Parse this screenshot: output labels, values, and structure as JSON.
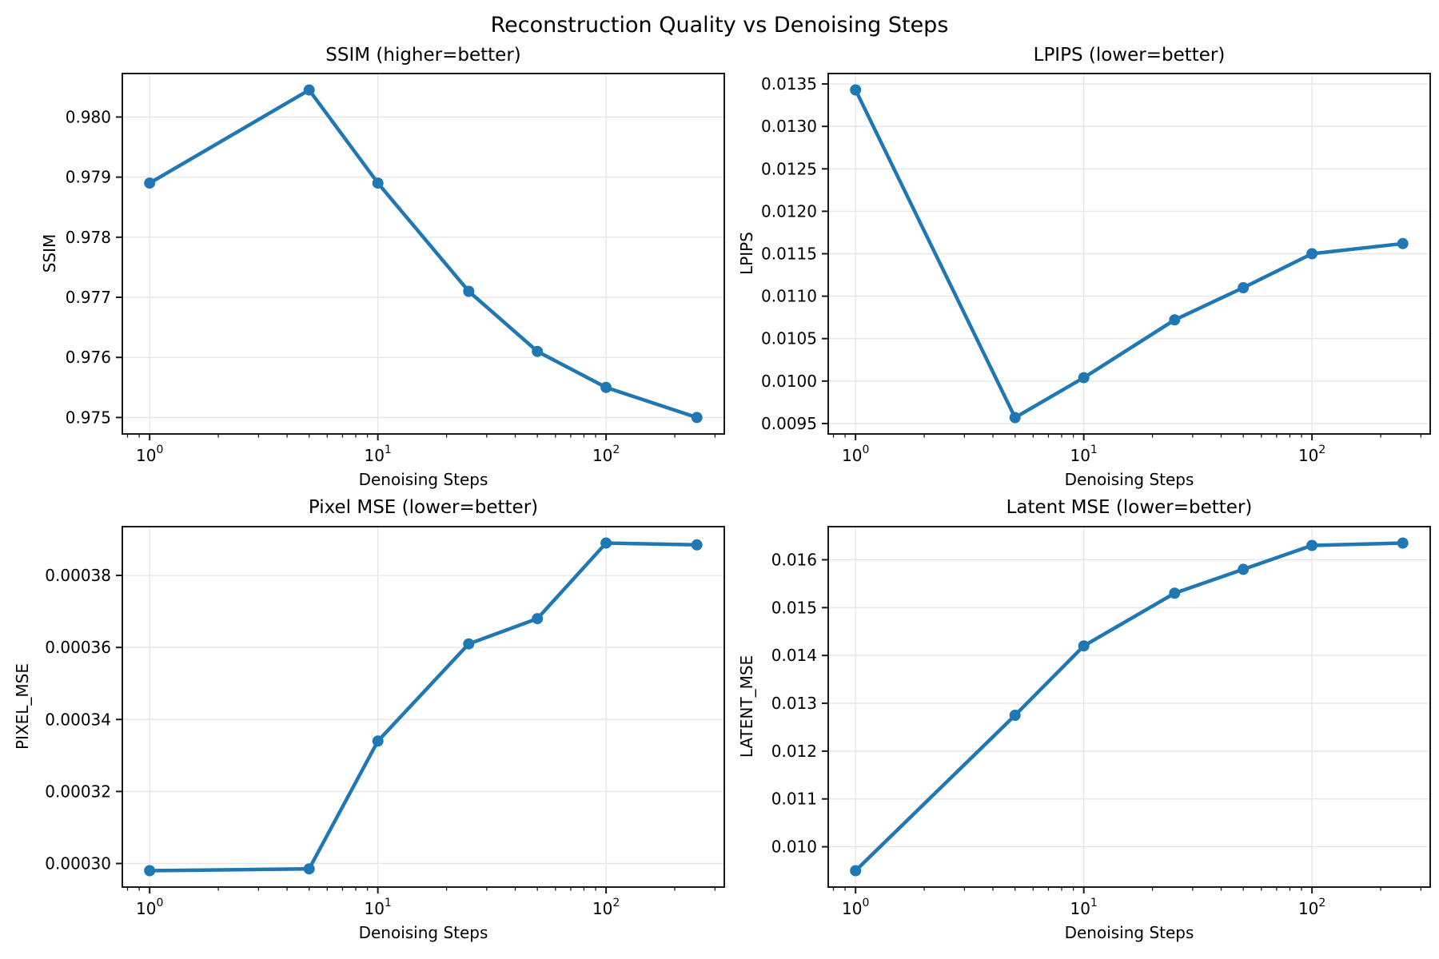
{
  "figure": {
    "title": "Reconstruction Quality vs Denoising Steps",
    "background_color": "#ffffff",
    "accent_color": "#1f77b4"
  },
  "chart_data": [
    {
      "id": "ssim",
      "type": "line",
      "title": "SSIM (higher=better)",
      "xlabel": "Denoising Steps",
      "ylabel": "SSIM",
      "x_scale": "log",
      "grid": true,
      "legend": "none",
      "line_color": "#1f77b4",
      "marker": "circle",
      "x": [
        1,
        5,
        10,
        25,
        50,
        100,
        250
      ],
      "values": [
        0.9789,
        0.98045,
        0.9789,
        0.9771,
        0.9761,
        0.9755,
        0.975
      ],
      "xlim": [
        0.759,
        329.6
      ],
      "ylim": [
        0.974726,
        0.980724
      ],
      "xticks": [
        {
          "value": 1,
          "base": "10",
          "exponent": "0"
        },
        {
          "value": 10,
          "base": "10",
          "exponent": "1"
        },
        {
          "value": 100,
          "base": "10",
          "exponent": "2"
        }
      ],
      "x_minor_ticks": [
        0.8,
        0.9,
        2,
        3,
        4,
        5,
        6,
        7,
        8,
        9,
        20,
        30,
        40,
        50,
        60,
        70,
        80,
        90,
        200,
        300
      ],
      "yticks": [
        {
          "value": 0.975,
          "label": "0.975"
        },
        {
          "value": 0.976,
          "label": "0.976"
        },
        {
          "value": 0.977,
          "label": "0.977"
        },
        {
          "value": 0.978,
          "label": "0.978"
        },
        {
          "value": 0.979,
          "label": "0.979"
        },
        {
          "value": 0.98,
          "label": "0.980"
        }
      ]
    },
    {
      "id": "lpips",
      "type": "line",
      "title": "LPIPS (lower=better)",
      "xlabel": "Denoising Steps",
      "ylabel": "LPIPS",
      "x_scale": "log",
      "grid": true,
      "legend": "none",
      "line_color": "#1f77b4",
      "marker": "circle",
      "x": [
        1,
        5,
        10,
        25,
        50,
        100,
        250
      ],
      "values": [
        0.01343,
        0.00957,
        0.01004,
        0.01072,
        0.0111,
        0.0115,
        0.01162
      ],
      "xlim": [
        0.759,
        329.6
      ],
      "ylim": [
        0.009377,
        0.013623
      ],
      "xticks": [
        {
          "value": 1,
          "base": "10",
          "exponent": "0"
        },
        {
          "value": 10,
          "base": "10",
          "exponent": "1"
        },
        {
          "value": 100,
          "base": "10",
          "exponent": "2"
        }
      ],
      "x_minor_ticks": [
        0.8,
        0.9,
        2,
        3,
        4,
        5,
        6,
        7,
        8,
        9,
        20,
        30,
        40,
        50,
        60,
        70,
        80,
        90,
        200,
        300
      ],
      "yticks": [
        {
          "value": 0.0095,
          "label": "0.0095"
        },
        {
          "value": 0.01,
          "label": "0.0100"
        },
        {
          "value": 0.0105,
          "label": "0.0105"
        },
        {
          "value": 0.011,
          "label": "0.0110"
        },
        {
          "value": 0.0115,
          "label": "0.0115"
        },
        {
          "value": 0.012,
          "label": "0.0120"
        },
        {
          "value": 0.0125,
          "label": "0.0125"
        },
        {
          "value": 0.013,
          "label": "0.0130"
        },
        {
          "value": 0.0135,
          "label": "0.0135"
        }
      ]
    },
    {
      "id": "pixel",
      "type": "line",
      "title": "Pixel MSE (lower=better)",
      "xlabel": "Denoising Steps",
      "ylabel": "PIXEL_MSE",
      "x_scale": "log",
      "grid": true,
      "legend": "none",
      "line_color": "#1f77b4",
      "marker": "circle",
      "x": [
        1,
        5,
        10,
        25,
        50,
        100,
        250
      ],
      "values": [
        0.000298,
        0.0002985,
        0.000334,
        0.000361,
        0.000368,
        0.000389,
        0.0003885
      ],
      "xlim": [
        0.759,
        329.6
      ],
      "ylim": [
        0.00029345,
        0.00039355
      ],
      "xticks": [
        {
          "value": 1,
          "base": "10",
          "exponent": "0"
        },
        {
          "value": 10,
          "base": "10",
          "exponent": "1"
        },
        {
          "value": 100,
          "base": "10",
          "exponent": "2"
        }
      ],
      "x_minor_ticks": [
        0.8,
        0.9,
        2,
        3,
        4,
        5,
        6,
        7,
        8,
        9,
        20,
        30,
        40,
        50,
        60,
        70,
        80,
        90,
        200,
        300
      ],
      "yticks": [
        {
          "value": 0.0003,
          "label": "0.00030"
        },
        {
          "value": 0.00032,
          "label": "0.00032"
        },
        {
          "value": 0.00034,
          "label": "0.00034"
        },
        {
          "value": 0.00036,
          "label": "0.00036"
        },
        {
          "value": 0.00038,
          "label": "0.00038"
        }
      ]
    },
    {
      "id": "latent",
      "type": "line",
      "title": "Latent MSE (lower=better)",
      "xlabel": "Denoising Steps",
      "ylabel": "LATENT_MSE",
      "x_scale": "log",
      "grid": true,
      "legend": "none",
      "line_color": "#1f77b4",
      "marker": "circle",
      "x": [
        1,
        5,
        10,
        25,
        50,
        100,
        250
      ],
      "values": [
        0.0095,
        0.01275,
        0.0142,
        0.0153,
        0.0158,
        0.0163,
        0.01635
      ],
      "xlim": [
        0.759,
        329.6
      ],
      "ylim": [
        0.0091575,
        0.0166925
      ],
      "xticks": [
        {
          "value": 1,
          "base": "10",
          "exponent": "0"
        },
        {
          "value": 10,
          "base": "10",
          "exponent": "1"
        },
        {
          "value": 100,
          "base": "10",
          "exponent": "2"
        }
      ],
      "x_minor_ticks": [
        0.8,
        0.9,
        2,
        3,
        4,
        5,
        6,
        7,
        8,
        9,
        20,
        30,
        40,
        50,
        60,
        70,
        80,
        90,
        200,
        300
      ],
      "yticks": [
        {
          "value": 0.01,
          "label": "0.010"
        },
        {
          "value": 0.011,
          "label": "0.011"
        },
        {
          "value": 0.012,
          "label": "0.012"
        },
        {
          "value": 0.013,
          "label": "0.013"
        },
        {
          "value": 0.014,
          "label": "0.014"
        },
        {
          "value": 0.015,
          "label": "0.015"
        },
        {
          "value": 0.016,
          "label": "0.016"
        }
      ]
    }
  ]
}
